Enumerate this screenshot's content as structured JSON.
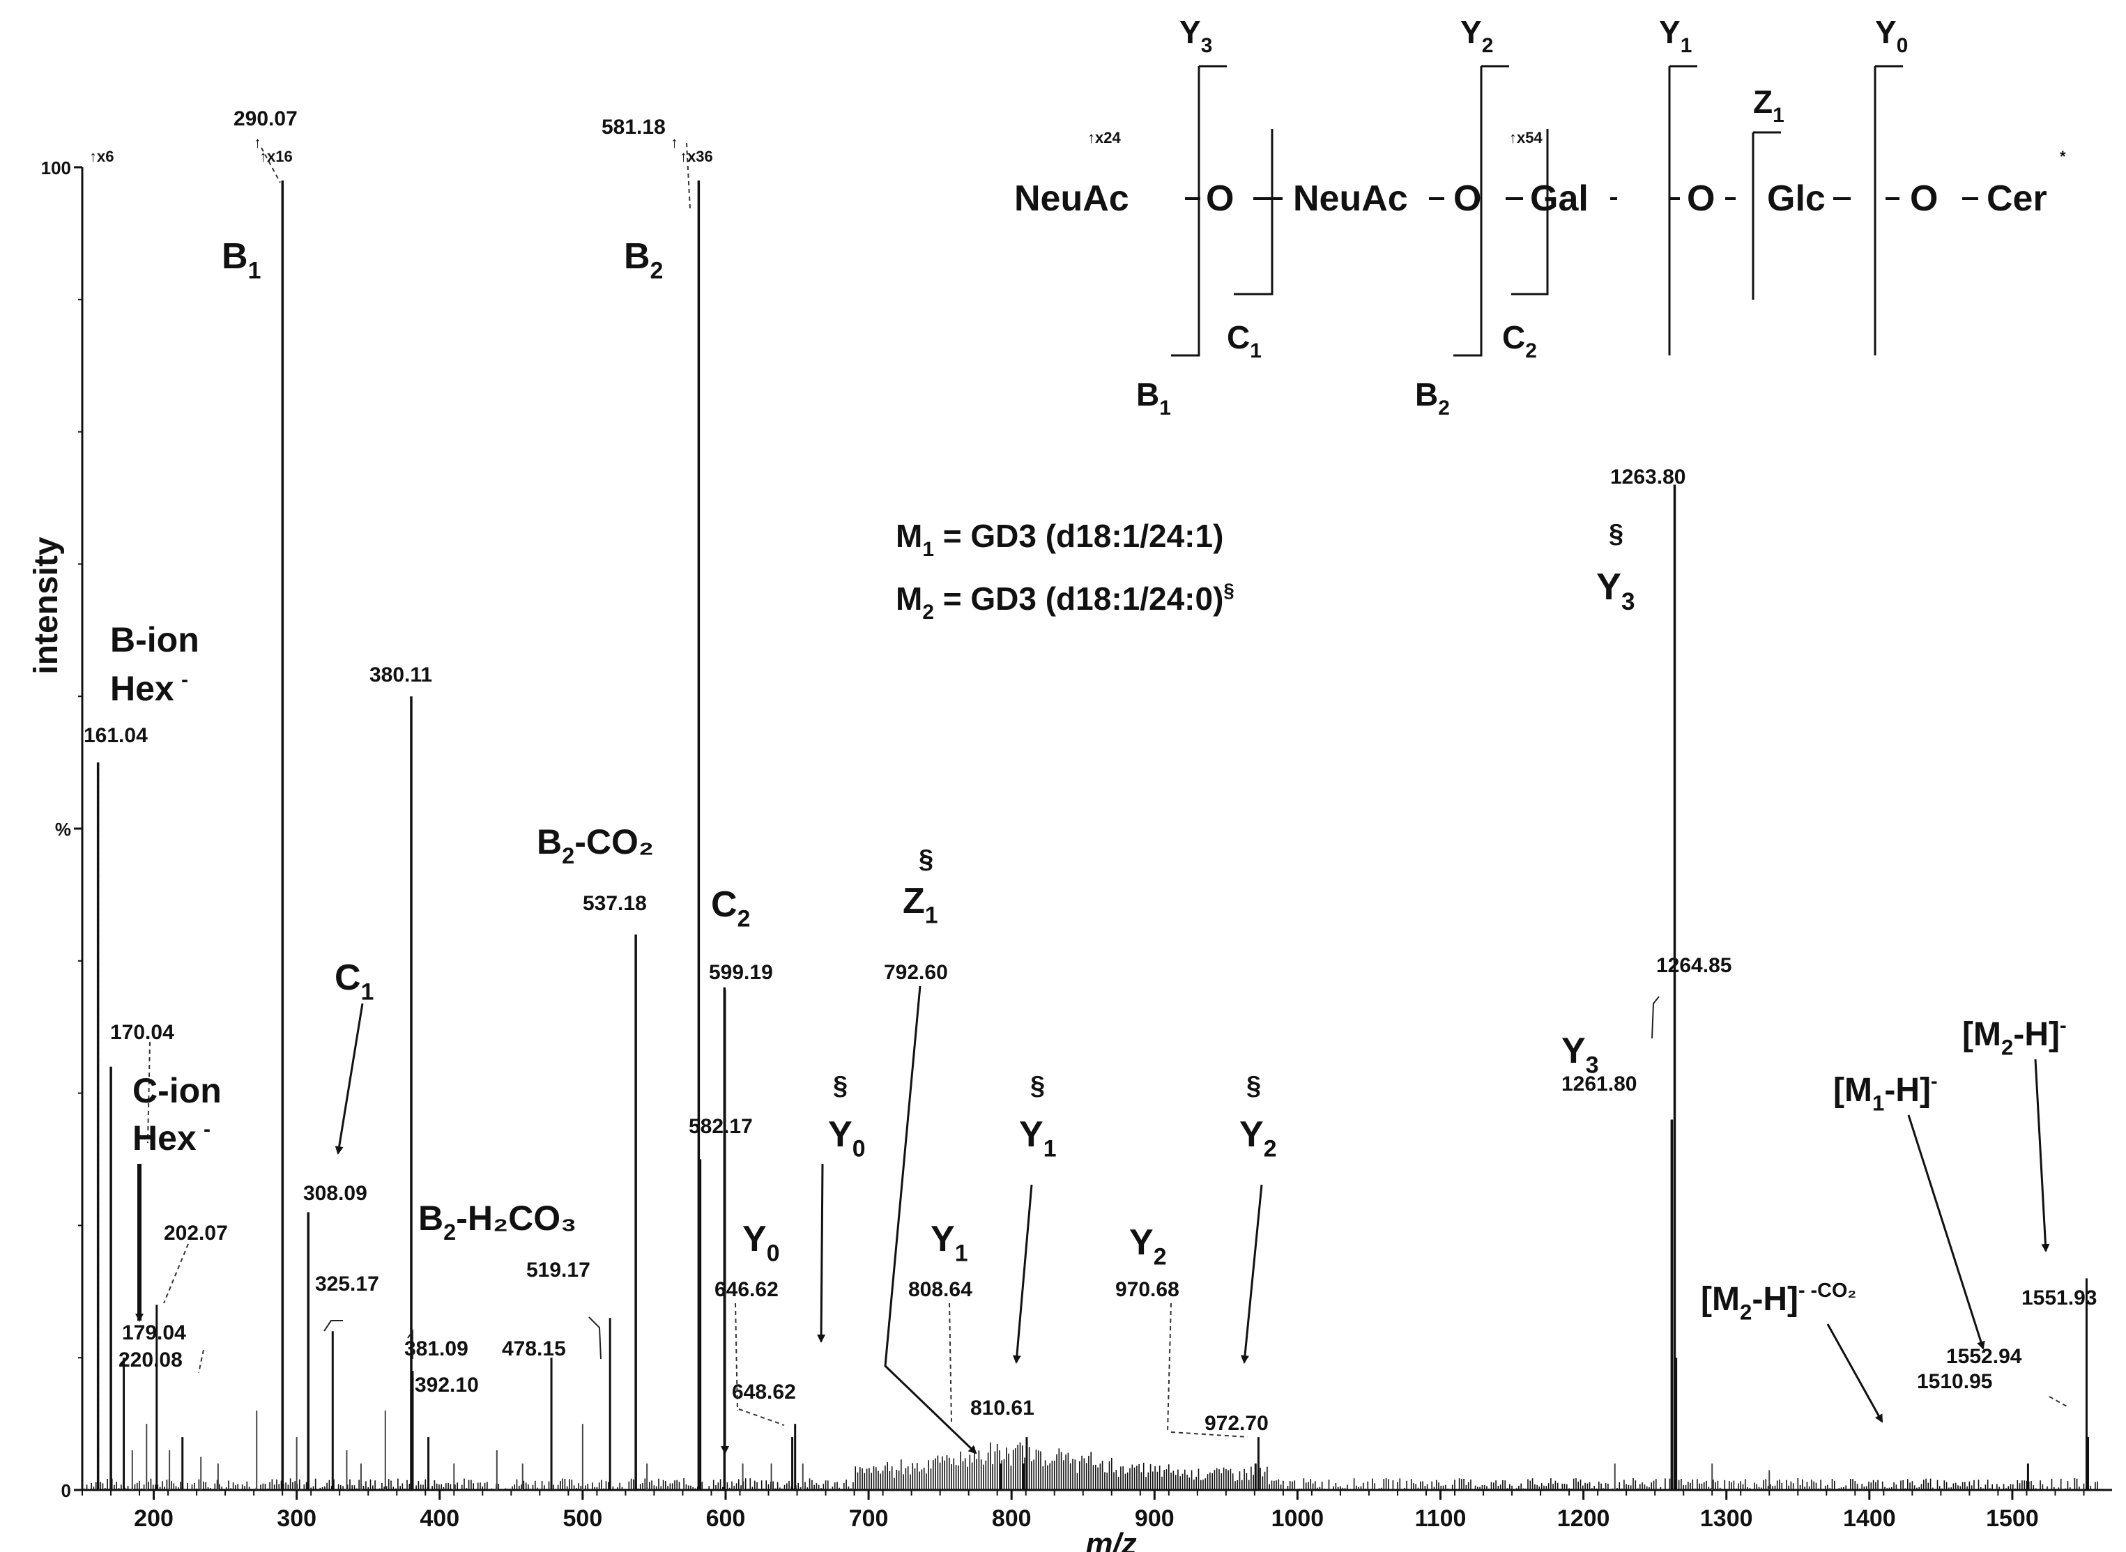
{
  "chart_data": {
    "type": "line",
    "title": "",
    "xlabel": "m/z",
    "ylabel": "intensity",
    "xlim": [
      150,
      1560
    ],
    "ylim": [
      0,
      100
    ],
    "x_ticks": [
      "200",
      "300",
      "400",
      "500",
      "600",
      "700",
      "800",
      "900",
      "1000",
      "1100",
      "1200",
      "1300",
      "1400",
      "1500"
    ],
    "y_ticks": [
      "0",
      "%",
      "100"
    ],
    "grid": false,
    "series": [
      {
        "type": "stick",
        "peaks": [
          {
            "x": 161.04,
            "y": 55,
            "label": "161.04"
          },
          {
            "x": 170.04,
            "y": 32,
            "label": "170.04"
          },
          {
            "x": 179.04,
            "y": 10,
            "label": "179.04"
          },
          {
            "x": 202.07,
            "y": 14,
            "label": "202.07"
          },
          {
            "x": 220.08,
            "y": 4,
            "label": "220.08"
          },
          {
            "x": 290.07,
            "y": 99,
            "label": "290.07"
          },
          {
            "x": 308.09,
            "y": 21,
            "label": "308.09"
          },
          {
            "x": 325.17,
            "y": 12,
            "label": "325.17"
          },
          {
            "x": 380.11,
            "y": 60,
            "label": "380.11"
          },
          {
            "x": 381.09,
            "y": 9,
            "label": "381.09"
          },
          {
            "x": 392.1,
            "y": 4,
            "label": "392.10"
          },
          {
            "x": 478.15,
            "y": 10,
            "label": "478.15"
          },
          {
            "x": 519.17,
            "y": 13,
            "label": "519.17"
          },
          {
            "x": 537.18,
            "y": 42,
            "label": "537.18"
          },
          {
            "x": 581.18,
            "y": 99,
            "label": "581.18"
          },
          {
            "x": 582.17,
            "y": 25,
            "label": "582.17"
          },
          {
            "x": 599.19,
            "y": 38,
            "label": "599.19"
          },
          {
            "x": 646.62,
            "y": 4,
            "label": "646.62"
          },
          {
            "x": 648.62,
            "y": 5,
            "label": "648.62"
          },
          {
            "x": 792.6,
            "y": 2,
            "label": "792.60"
          },
          {
            "x": 808.64,
            "y": 2,
            "label": "808.64"
          },
          {
            "x": 810.61,
            "y": 4,
            "label": "810.61"
          },
          {
            "x": 970.68,
            "y": 2,
            "label": "970.68"
          },
          {
            "x": 972.7,
            "y": 4,
            "label": "972.70"
          },
          {
            "x": 1261.8,
            "y": 28,
            "label": "1261.80"
          },
          {
            "x": 1263.8,
            "y": 76,
            "label": "1263.80"
          },
          {
            "x": 1264.85,
            "y": 10,
            "label": "1264.85"
          },
          {
            "x": 1510.95,
            "y": 2,
            "label": "1510.95"
          },
          {
            "x": 1551.93,
            "y": 16,
            "label": "1551.93"
          },
          {
            "x": 1552.94,
            "y": 4,
            "label": "1552.94"
          }
        ]
      }
    ],
    "ion_labels": {
      "b1": "B1",
      "b2": "B2",
      "b_ion": "B-ion",
      "hex1": "Hex-",
      "c_ion": "C-ion",
      "hex2": "Hex-",
      "c1": "C1",
      "b2_h2co3": "B2-H2CO3",
      "b2_co2": "B2-CO2",
      "c2": "C2",
      "z1": "Z1",
      "y0a": "Y0",
      "y0b": "Y0",
      "y1a": "Y1",
      "y1b": "Y1",
      "y2a": "Y2",
      "y2b": "Y2",
      "y3a": "Y3",
      "y3b": "Y3",
      "m2h": "[M2-H]-",
      "m1h": "[M1-H]-",
      "m2h_co2": "[M2-H]--CO2",
      "section": "§"
    },
    "scale_labels": {
      "x6": "x6",
      "x16": "x16",
      "x36": "x36",
      "x24": "x24",
      "x54": "x54"
    },
    "annotations": {
      "m1": "M1 = GD3 (d18:1/24:1)",
      "m2": "M2 = GD3 (d18:1/24:0)§"
    },
    "structure": {
      "residues": [
        "NeuAc",
        "O",
        "NeuAc",
        "O",
        "Gal",
        "O",
        "Glc",
        "O",
        "Cer"
      ],
      "cleavage_labels": {
        "Y3": "Y3",
        "Y2": "Y2",
        "Y1": "Y1",
        "Y0": "Y0",
        "Z1": "Z1",
        "C1": "C1",
        "C2": "C2",
        "B1": "B1",
        "B2": "B2"
      }
    }
  }
}
